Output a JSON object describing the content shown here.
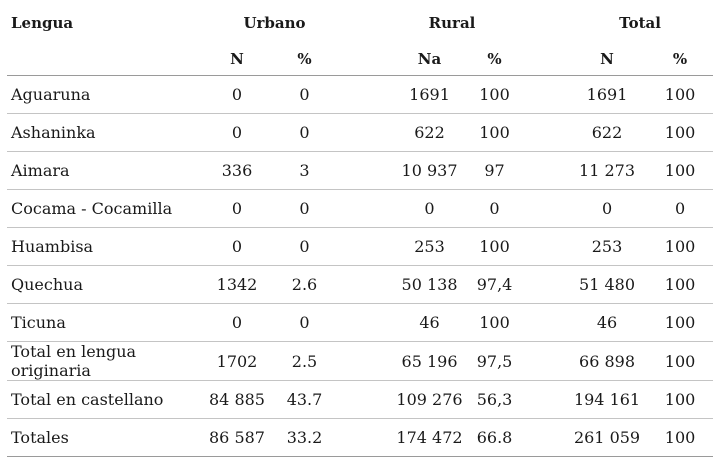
{
  "headers": {
    "lengua": "Lengua",
    "urbano": "Urbano",
    "rural": "Rural",
    "total": "Total",
    "urbano_n": "N",
    "urbano_pct": "%",
    "rural_n": "Na",
    "rural_pct": "%",
    "total_n": "N",
    "total_pct": "%"
  },
  "rows": [
    {
      "lengua": "Aguaruna",
      "urb_n": "0",
      "urb_pct": "0",
      "rur_n": "1691",
      "rur_pct": "100",
      "tot_n": "1691",
      "tot_pct": "100"
    },
    {
      "lengua": "Ashaninka",
      "urb_n": "0",
      "urb_pct": "0",
      "rur_n": "622",
      "rur_pct": "100",
      "tot_n": "622",
      "tot_pct": "100"
    },
    {
      "lengua": "Aimara",
      "urb_n": "336",
      "urb_pct": "3",
      "rur_n": "10 937",
      "rur_pct": "97",
      "tot_n": "11 273",
      "tot_pct": "100"
    },
    {
      "lengua": "Cocama - Cocamilla",
      "urb_n": "0",
      "urb_pct": "0",
      "rur_n": "0",
      "rur_pct": "0",
      "tot_n": "0",
      "tot_pct": "0"
    },
    {
      "lengua": "Huambisa",
      "urb_n": "0",
      "urb_pct": "0",
      "rur_n": "253",
      "rur_pct": "100",
      "tot_n": "253",
      "tot_pct": "100"
    },
    {
      "lengua": "Quechua",
      "urb_n": "1342",
      "urb_pct": "2.6",
      "rur_n": "50 138",
      "rur_pct": "97,4",
      "tot_n": "51 480",
      "tot_pct": "100"
    },
    {
      "lengua": "Ticuna",
      "urb_n": "0",
      "urb_pct": "0",
      "rur_n": "46",
      "rur_pct": "100",
      "tot_n": "46",
      "tot_pct": "100"
    },
    {
      "lengua": "Total en lengua originaria",
      "urb_n": "1702",
      "urb_pct": "2.5",
      "rur_n": "65 196",
      "rur_pct": "97,5",
      "tot_n": "66 898",
      "tot_pct": "100"
    },
    {
      "lengua": "Total en castellano",
      "urb_n": "84 885",
      "urb_pct": "43.7",
      "rur_n": "109 276",
      "rur_pct": "56,3",
      "tot_n": "194 161",
      "tot_pct": "100"
    },
    {
      "lengua": "Totales",
      "urb_n": "86 587",
      "urb_pct": "33.2",
      "rur_n": "174 472",
      "rur_pct": "66.8",
      "tot_n": "261 059",
      "tot_pct": "100"
    }
  ]
}
